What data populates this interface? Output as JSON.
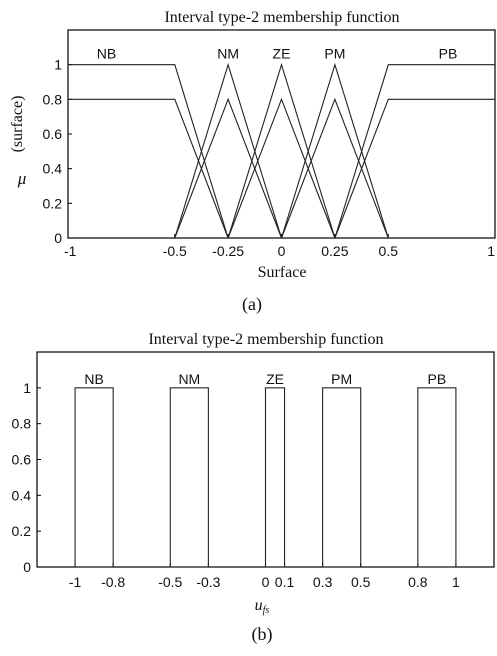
{
  "chart_data": [
    {
      "type": "line",
      "panel_label": "(a)",
      "title": "Interval type-2 membership function",
      "xlabel": "Surface",
      "ylabel_symbol": "μ",
      "ylabel": "(surface)",
      "xlim": [
        -1,
        1
      ],
      "ylim": [
        0,
        1.2
      ],
      "x_ticks": [
        -1,
        -0.5,
        -0.25,
        0,
        0.25,
        0.5,
        1
      ],
      "x_tick_labels": [
        "-1",
        "-0.5",
        "-0.25",
        "0",
        "0.25",
        "0.5",
        "1"
      ],
      "y_ticks": [
        0,
        0.2,
        0.4,
        0.6,
        0.8,
        1
      ],
      "y_tick_labels": [
        "0",
        "0.2",
        "0.4",
        "0.6",
        "0.8",
        "1"
      ],
      "series": [
        {
          "name": "NB",
          "upper": [
            [
              -1,
              1
            ],
            [
              -0.5,
              1
            ],
            [
              -0.25,
              0
            ]
          ],
          "lower": [
            [
              -1,
              0.8
            ],
            [
              -0.5,
              0.8
            ],
            [
              -0.25,
              0
            ]
          ]
        },
        {
          "name": "NM",
          "upper": [
            [
              -0.5,
              0
            ],
            [
              -0.25,
              1
            ],
            [
              0,
              0
            ]
          ],
          "lower": [
            [
              -0.5,
              0
            ],
            [
              -0.25,
              0.8
            ],
            [
              0,
              0
            ]
          ]
        },
        {
          "name": "ZE",
          "upper": [
            [
              -0.25,
              0
            ],
            [
              0,
              1
            ],
            [
              0.25,
              0
            ]
          ],
          "lower": [
            [
              -0.25,
              0
            ],
            [
              0,
              0.8
            ],
            [
              0.25,
              0
            ]
          ]
        },
        {
          "name": "PM",
          "upper": [
            [
              0,
              0
            ],
            [
              0.25,
              1
            ],
            [
              0.5,
              0
            ]
          ],
          "lower": [
            [
              0,
              0
            ],
            [
              0.25,
              0.8
            ],
            [
              0.5,
              0
            ]
          ]
        },
        {
          "name": "PB",
          "upper": [
            [
              0.25,
              0
            ],
            [
              0.5,
              1
            ],
            [
              1,
              1
            ]
          ],
          "lower": [
            [
              0.25,
              0
            ],
            [
              0.5,
              0.8
            ],
            [
              1,
              0.8
            ]
          ]
        }
      ]
    },
    {
      "type": "bar",
      "panel_label": "(b)",
      "title": "Interval type-2 membership function",
      "xlabel": "u_fs",
      "xlim": [
        -1.2,
        1.2
      ],
      "ylim": [
        0,
        1.2
      ],
      "x_ticks": [
        -1,
        -0.8,
        -0.5,
        -0.3,
        0,
        0.1,
        0.3,
        0.5,
        0.8,
        1
      ],
      "x_tick_labels": [
        "-1",
        "-0.8",
        "-0.5",
        "-0.3",
        "0",
        "0.1",
        "0.3",
        "0.5",
        "0.8",
        "1"
      ],
      "y_ticks": [
        0,
        0.2,
        0.4,
        0.6,
        0.8,
        1
      ],
      "y_tick_labels": [
        "0",
        "0.2",
        "0.4",
        "0.6",
        "0.8",
        "1"
      ],
      "series": [
        {
          "name": "NB",
          "x0": -1,
          "x1": -0.8,
          "height": 1
        },
        {
          "name": "NM",
          "x0": -0.5,
          "x1": -0.3,
          "height": 1
        },
        {
          "name": "ZE",
          "x0": 0,
          "x1": 0.1,
          "height": 1
        },
        {
          "name": "PM",
          "x0": 0.3,
          "x1": 0.5,
          "height": 1
        },
        {
          "name": "PB",
          "x0": 0.8,
          "x1": 1,
          "height": 1
        }
      ]
    }
  ]
}
